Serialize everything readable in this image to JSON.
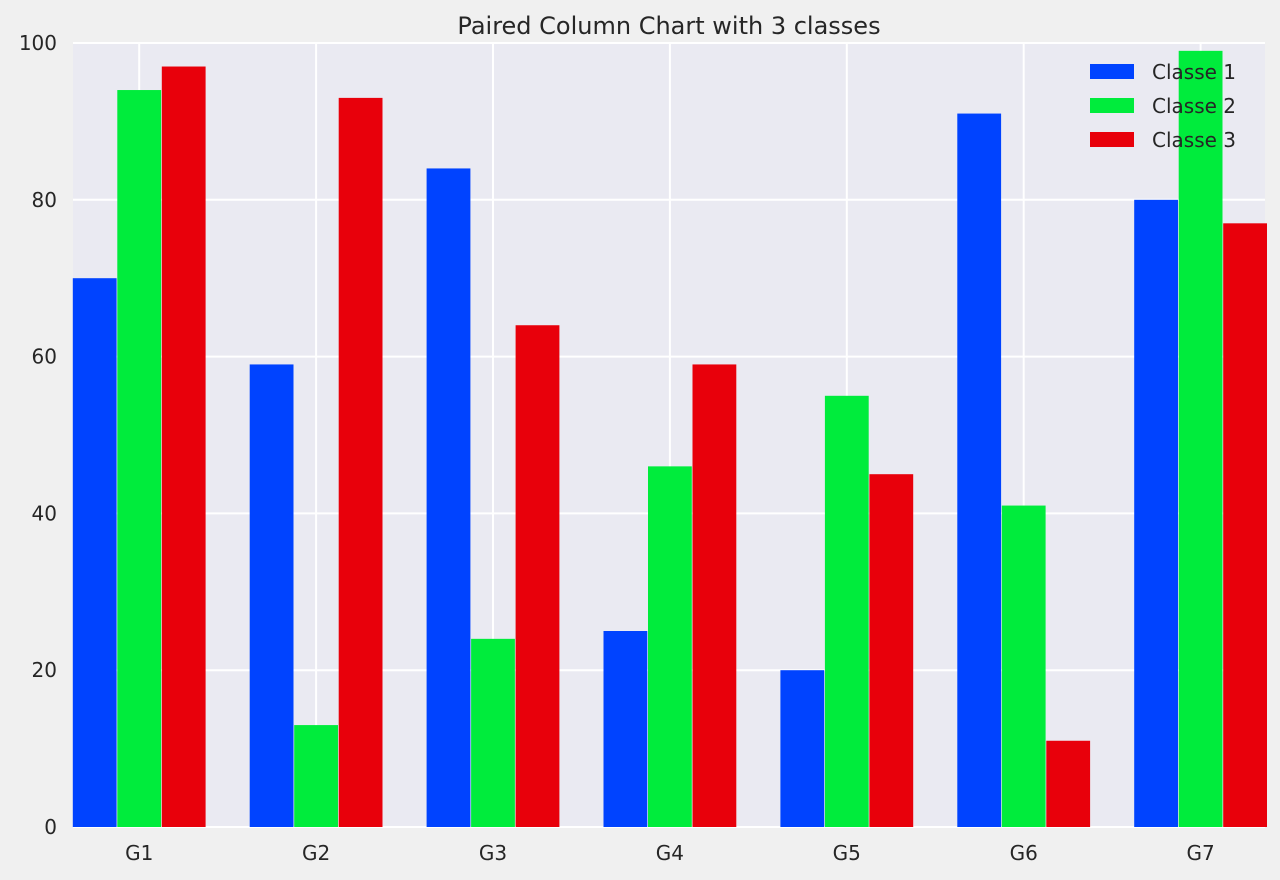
{
  "chart_data": {
    "type": "bar",
    "title": "Paired Column Chart with 3 classes",
    "xlabel": "",
    "ylabel": "",
    "categories": [
      "G1",
      "G2",
      "G3",
      "G4",
      "G5",
      "G6",
      "G7"
    ],
    "series": [
      {
        "name": "Classe 1",
        "color": "#0043ff",
        "values": [
          70,
          59,
          84,
          25,
          20,
          91,
          80
        ]
      },
      {
        "name": "Classe 2",
        "color": "#00ec3c",
        "values": [
          94,
          13,
          24,
          46,
          55,
          41,
          99
        ]
      },
      {
        "name": "Classe 3",
        "color": "#e8000b",
        "values": [
          97,
          93,
          64,
          59,
          45,
          11,
          77
        ]
      }
    ],
    "ylim": [
      0,
      100
    ],
    "yticks": [
      0,
      20,
      40,
      60,
      80,
      100
    ],
    "grid": true,
    "legend_position": "top-right",
    "colors": {
      "plot_background": "#eaeaf2",
      "page_background": "#f0f0f0",
      "grid": "#ffffff"
    }
  }
}
